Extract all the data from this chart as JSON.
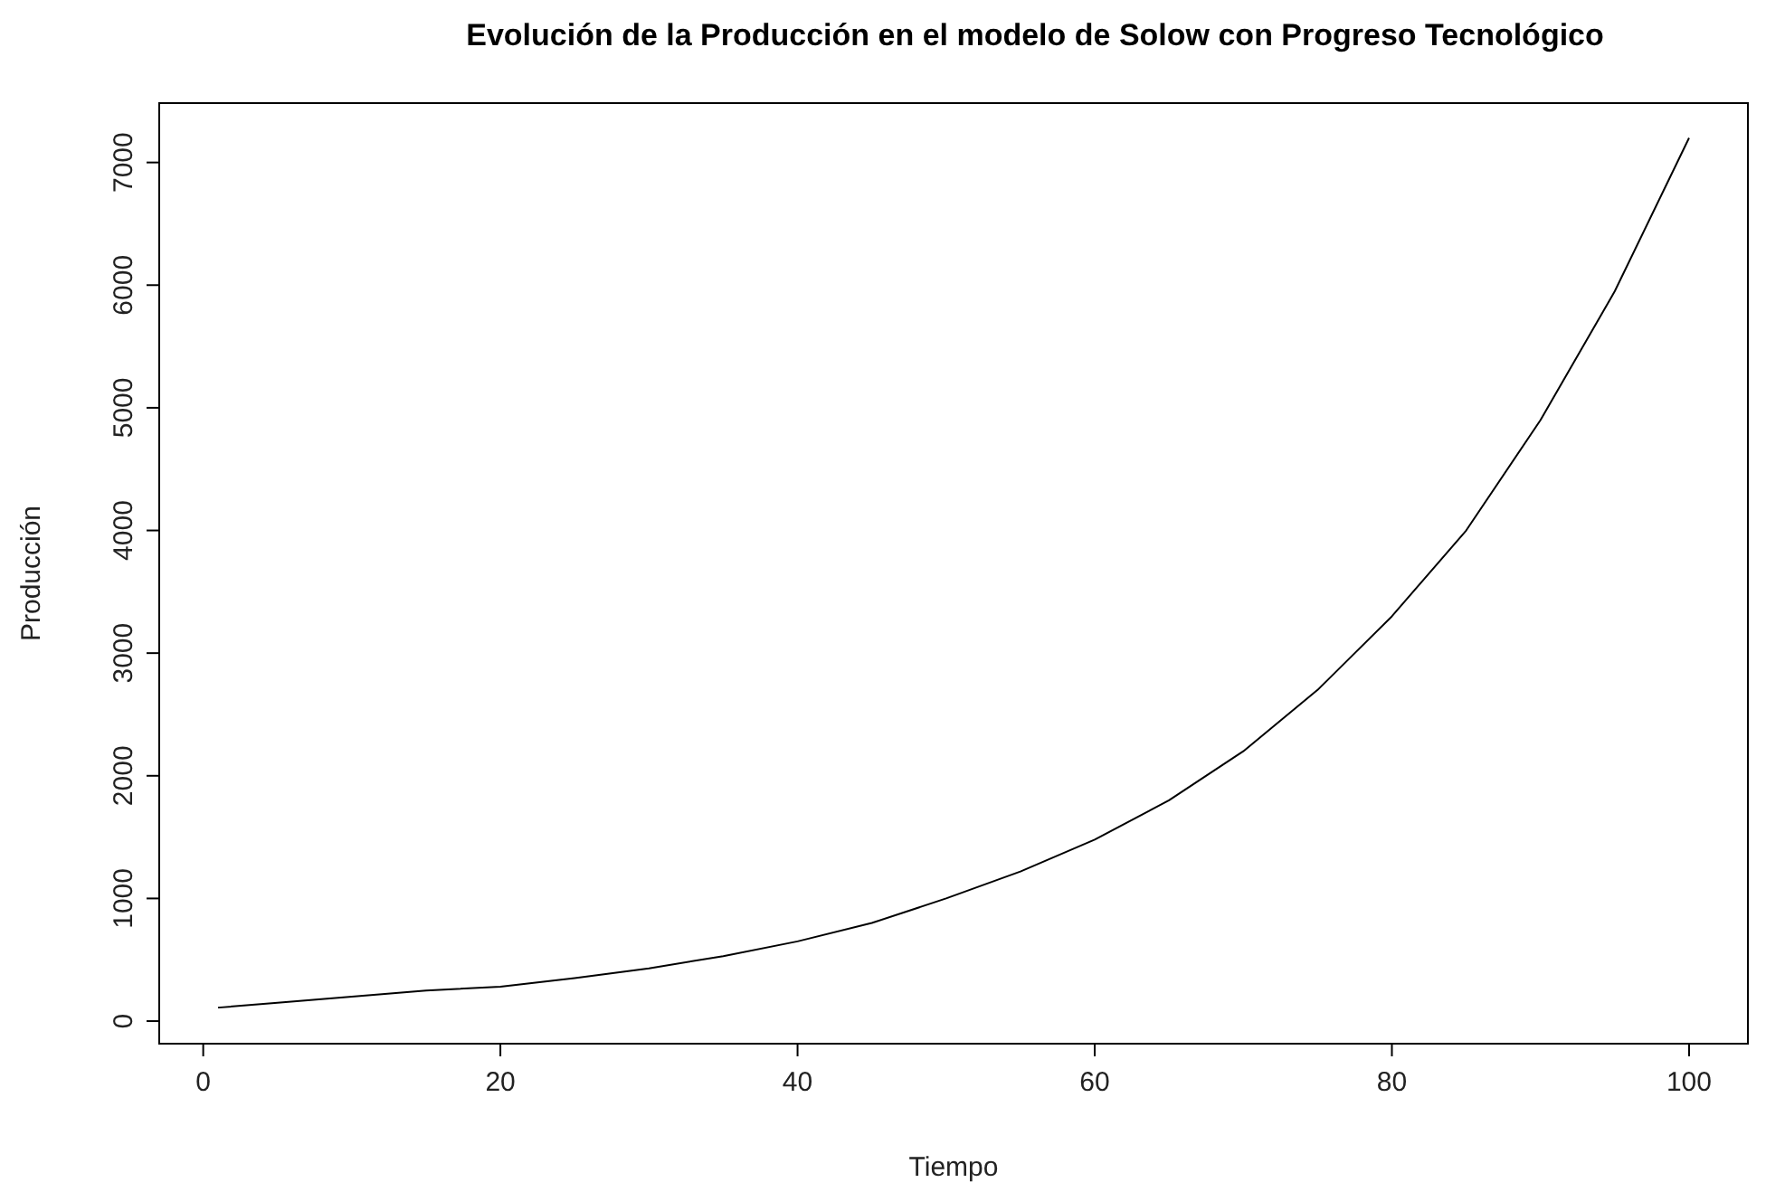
{
  "chart_data": {
    "type": "line",
    "title": "Evolución de la Producción en el modelo de Solow con Progreso Tecnológico",
    "xlabel": "Tiempo",
    "ylabel": "Producción",
    "x": [
      1,
      5,
      10,
      15,
      20,
      25,
      30,
      35,
      40,
      45,
      50,
      55,
      60,
      65,
      70,
      75,
      80,
      85,
      90,
      95,
      100
    ],
    "series": [
      {
        "color": "#000000",
        "values": [
          110,
          150,
          200,
          250,
          280,
          350,
          430,
          530,
          650,
          800,
          1000,
          1220,
          1480,
          1800,
          2200,
          2700,
          3300,
          4000,
          4900,
          5950,
          7200
        ]
      }
    ],
    "xlim": [
      -2.96,
      103.96
    ],
    "ylim": [
      -184,
      7484
    ],
    "xticks": [
      0,
      20,
      40,
      60,
      80,
      100
    ],
    "yticks": [
      0,
      1000,
      2000,
      3000,
      4000,
      5000,
      6000,
      7000
    ],
    "grid": false,
    "line_style": "solid",
    "marker": "none"
  }
}
